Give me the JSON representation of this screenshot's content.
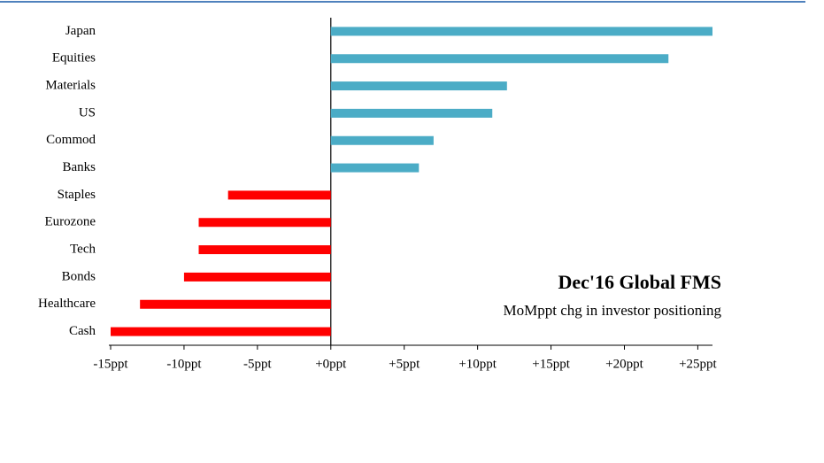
{
  "chart_data": {
    "type": "hbar",
    "title": "Dec'16 Global FMS",
    "subtitle": "MoMppt chg in investor positioning",
    "categories": [
      "Japan",
      "Equities",
      "Materials",
      "US",
      "Commod",
      "Banks",
      "Staples",
      "Eurozone",
      "Tech",
      "Bonds",
      "Healthcare",
      "Cash"
    ],
    "values": [
      26,
      23,
      12,
      11,
      7,
      6,
      -7,
      -9,
      -9,
      -10,
      -13,
      -15
    ],
    "positive_color": "#4bacc6",
    "negative_color": "#ff0000",
    "xlim": [
      -15,
      26
    ],
    "xticks": [
      {
        "value": -15,
        "label": "-15ppt"
      },
      {
        "value": -10,
        "label": "-10ppt"
      },
      {
        "value": -5,
        "label": "-5ppt"
      },
      {
        "value": 0,
        "label": "+0ppt"
      },
      {
        "value": 5,
        "label": "+5ppt"
      },
      {
        "value": 10,
        "label": "+10ppt"
      },
      {
        "value": 15,
        "label": "+15ppt"
      },
      {
        "value": 20,
        "label": "+20ppt"
      },
      {
        "value": 25,
        "label": "+25ppt"
      }
    ],
    "grid": false
  }
}
